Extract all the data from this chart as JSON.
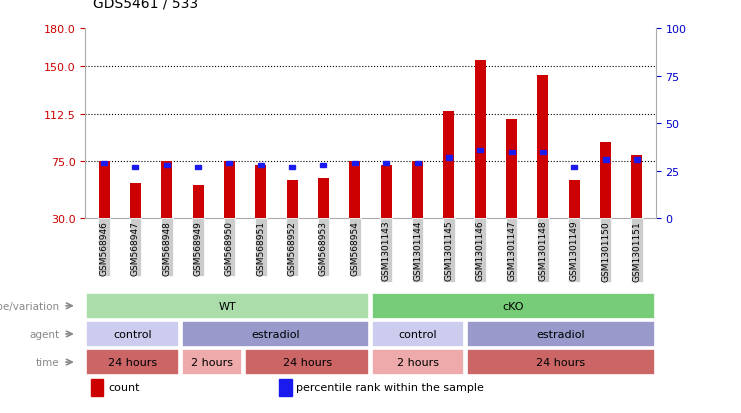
{
  "title": "GDS5461 / 533",
  "samples": [
    "GSM568946",
    "GSM568947",
    "GSM568948",
    "GSM568949",
    "GSM568950",
    "GSM568951",
    "GSM568952",
    "GSM568953",
    "GSM568954",
    "GSM1301143",
    "GSM1301144",
    "GSM1301145",
    "GSM1301146",
    "GSM1301147",
    "GSM1301148",
    "GSM1301149",
    "GSM1301150",
    "GSM1301151"
  ],
  "red_values": [
    75,
    58,
    75,
    56,
    75,
    72,
    60,
    62,
    75,
    72,
    75,
    115,
    155,
    108,
    143,
    60,
    90,
    80
  ],
  "blue_values_pct": [
    29,
    27,
    28,
    27,
    29,
    28,
    27,
    28,
    29,
    29,
    29,
    32,
    36,
    35,
    35,
    27,
    31,
    31
  ],
  "ylim_left": [
    30,
    180
  ],
  "ylim_right": [
    0,
    100
  ],
  "yticks_left": [
    30,
    75,
    112.5,
    150,
    180
  ],
  "yticks_right": [
    0,
    25,
    50,
    75,
    100
  ],
  "grid_values": [
    75,
    112.5,
    150
  ],
  "bar_color": "#cc0000",
  "blue_color": "#1a1aee",
  "bar_width": 0.35,
  "annotation_rows": [
    {
      "label": "genotype/variation",
      "groups": [
        {
          "text": "WT",
          "start": 0,
          "end": 8,
          "color": "#aaddaa"
        },
        {
          "text": "cKO",
          "start": 9,
          "end": 17,
          "color": "#77cc77"
        }
      ]
    },
    {
      "label": "agent",
      "groups": [
        {
          "text": "control",
          "start": 0,
          "end": 2,
          "color": "#ccccee"
        },
        {
          "text": "estradiol",
          "start": 3,
          "end": 8,
          "color": "#9999cc"
        },
        {
          "text": "control",
          "start": 9,
          "end": 11,
          "color": "#ccccee"
        },
        {
          "text": "estradiol",
          "start": 12,
          "end": 17,
          "color": "#9999cc"
        }
      ]
    },
    {
      "label": "time",
      "groups": [
        {
          "text": "24 hours",
          "start": 0,
          "end": 2,
          "color": "#cc6666"
        },
        {
          "text": "2 hours",
          "start": 3,
          "end": 4,
          "color": "#eeaaaa"
        },
        {
          "text": "24 hours",
          "start": 5,
          "end": 8,
          "color": "#cc6666"
        },
        {
          "text": "2 hours",
          "start": 9,
          "end": 11,
          "color": "#eeaaaa"
        },
        {
          "text": "24 hours",
          "start": 12,
          "end": 17,
          "color": "#cc6666"
        }
      ]
    }
  ],
  "legend": [
    {
      "color": "#cc0000",
      "label": "count"
    },
    {
      "color": "#1a1aee",
      "label": "percentile rank within the sample"
    }
  ],
  "bg_color": "#ffffff",
  "axis_color_left": "#cc0000",
  "axis_color_right": "#0000cc",
  "tick_label_bg": "#cccccc",
  "arrow_color": "#888888",
  "label_color": "#888888"
}
